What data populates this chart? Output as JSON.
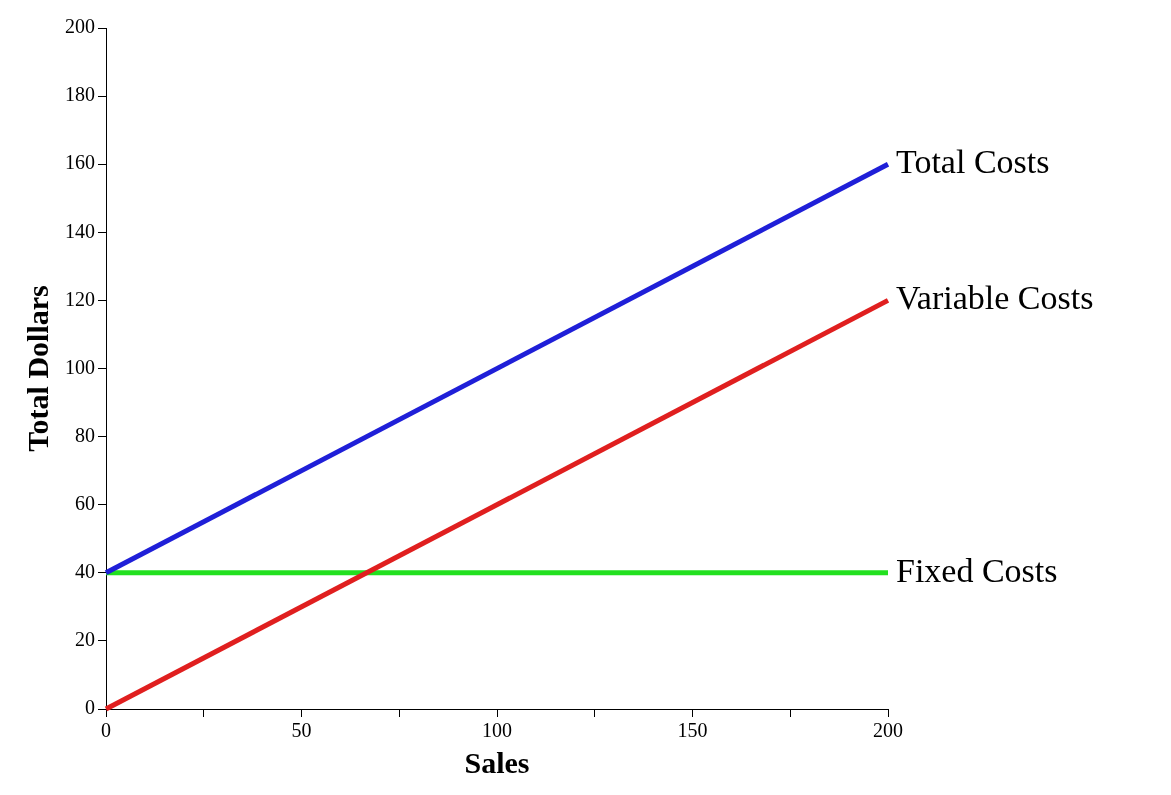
{
  "chart_data": {
    "type": "line",
    "xlabel": "Sales",
    "ylabel": "Total Dollars",
    "x": [
      0,
      200
    ],
    "series": [
      {
        "name": "Total Costs",
        "color": "#1f1fd8",
        "values": [
          40,
          160
        ]
      },
      {
        "name": "Variable Costs",
        "color": "#e01f1f",
        "values": [
          0,
          120
        ]
      },
      {
        "name": "Fixed Costs",
        "color": "#22e01f",
        "values": [
          40,
          40
        ]
      }
    ],
    "xlim": [
      0,
      200
    ],
    "xticks": [
      0,
      {
        "value": 25,
        "label": null
      },
      50,
      {
        "value": 75,
        "label": null
      },
      100,
      {
        "value": 125,
        "label": null
      },
      150,
      {
        "value": 175,
        "label": null
      },
      200
    ],
    "ylim": [
      0,
      200
    ],
    "yticks": [
      0,
      20,
      40,
      60,
      80,
      100,
      120,
      140,
      160,
      180,
      200
    ],
    "grid": false,
    "legend": false,
    "marker": "none",
    "line_style": "solid"
  }
}
